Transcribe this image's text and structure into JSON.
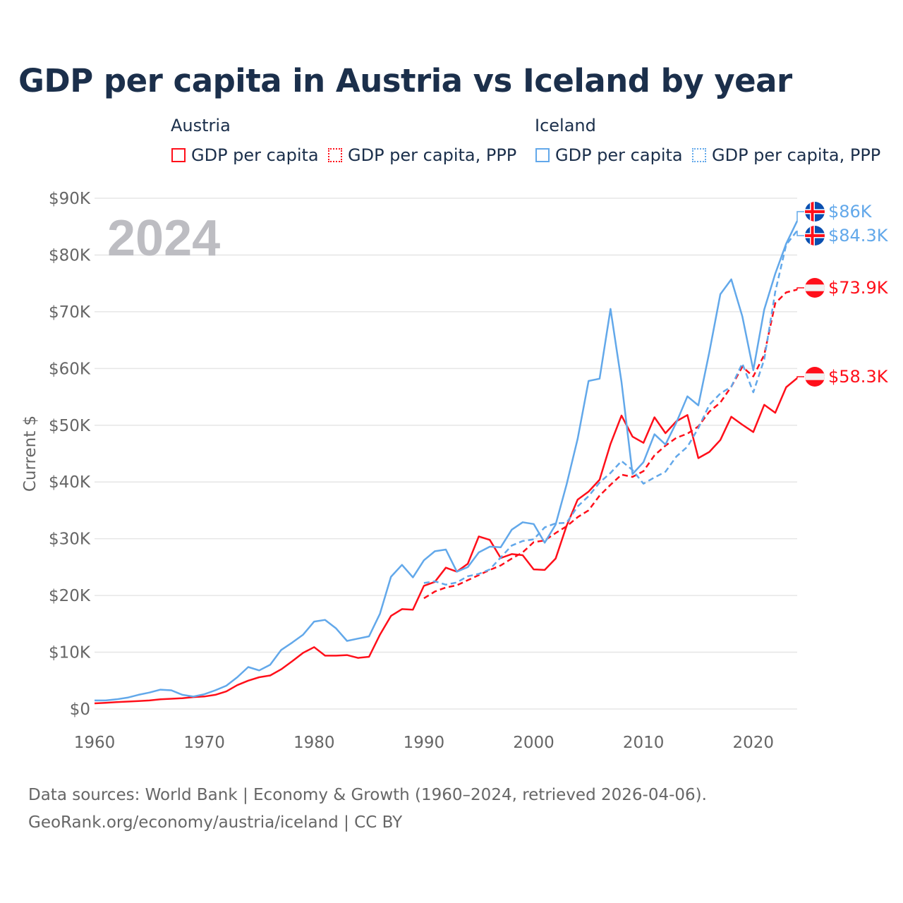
{
  "title": "GDP per capita in Austria vs Iceland by year",
  "legend": {
    "groups": [
      {
        "name": "Austria",
        "items": [
          "GDP per capita",
          "GDP per capita, PPP"
        ]
      },
      {
        "name": "Iceland",
        "items": [
          "GDP per capita",
          "GDP per capita, PPP"
        ]
      }
    ]
  },
  "year_watermark": "2024",
  "footer": {
    "line1": "Data sources: World Bank | Economy & Growth (1960–2024, retrieved 2026-04-06).",
    "line2": "GeoRank.org/economy/austria/iceland | CC BY"
  },
  "colors": {
    "austria": "#ff0f1a",
    "iceland": "#62a8ea",
    "title": "#1b2f4b"
  },
  "chart_data": {
    "type": "line",
    "title": "GDP per capita in Austria vs Iceland by year",
    "xlabel": "",
    "ylabel": "Current $",
    "xlim": [
      1960,
      2024
    ],
    "ylim": [
      0,
      90000
    ],
    "x_ticks": [
      "1960",
      "1970",
      "1980",
      "1990",
      "2000",
      "2010",
      "2020"
    ],
    "y_ticks": [
      "$0",
      "$10K",
      "$20K",
      "$30K",
      "$40K",
      "$50K",
      "$60K",
      "$70K",
      "$80K",
      "$90K"
    ],
    "grid": true,
    "legend_position": "top",
    "series": [
      {
        "name": "Austria GDP per capita",
        "country": "austria",
        "dashed": false,
        "start_year": 1960,
        "end_label": "$58.3K",
        "values_k": [
          1.0,
          1.1,
          1.2,
          1.3,
          1.4,
          1.5,
          1.7,
          1.8,
          1.9,
          2.1,
          2.2,
          2.5,
          3.1,
          4.2,
          5.0,
          5.6,
          5.9,
          7.0,
          8.4,
          9.9,
          10.9,
          9.4,
          9.4,
          9.5,
          9.0,
          9.2,
          13.1,
          16.4,
          17.6,
          17.5,
          21.7,
          22.4,
          24.9,
          24.2,
          25.6,
          30.4,
          29.8,
          26.6,
          27.3,
          27.1,
          24.6,
          24.5,
          26.5,
          32.3,
          36.9,
          38.3,
          40.4,
          46.7,
          51.7,
          48.0,
          46.9,
          51.4,
          48.6,
          50.7,
          51.8,
          44.2,
          45.3,
          47.4,
          51.5,
          50.1,
          48.8,
          53.6,
          52.2,
          56.7,
          58.3
        ]
      },
      {
        "name": "Austria GDP per capita, PPP",
        "country": "austria",
        "dashed": true,
        "start_year": 1990,
        "end_label": "$73.9K",
        "values_k": [
          19.5,
          20.7,
          21.4,
          21.8,
          22.7,
          23.6,
          24.5,
          25.3,
          26.5,
          27.6,
          29.4,
          29.7,
          31.0,
          32.2,
          33.8,
          35.0,
          37.6,
          39.5,
          41.3,
          40.9,
          41.9,
          44.7,
          46.4,
          47.8,
          48.5,
          49.8,
          52.4,
          54.0,
          56.8,
          60.3,
          58.6,
          62.4,
          71.5,
          73.4,
          73.9
        ]
      },
      {
        "name": "Iceland GDP per capita",
        "country": "iceland",
        "dashed": false,
        "start_year": 1960,
        "end_label": "$86K",
        "values_k": [
          1.5,
          1.5,
          1.7,
          2.0,
          2.5,
          2.9,
          3.4,
          3.3,
          2.5,
          2.2,
          2.6,
          3.3,
          4.1,
          5.6,
          7.4,
          6.8,
          7.8,
          10.4,
          11.7,
          13.1,
          15.4,
          15.7,
          14.2,
          12.0,
          12.4,
          12.8,
          16.8,
          23.3,
          25.4,
          23.2,
          26.2,
          27.8,
          28.1,
          24.2,
          25.0,
          27.6,
          28.6,
          28.5,
          31.6,
          32.9,
          32.6,
          29.3,
          32.5,
          39.6,
          47.6,
          57.8,
          58.2,
          70.5,
          57.6,
          41.4,
          43.5,
          48.4,
          46.6,
          50.5,
          55.1,
          53.5,
          62.9,
          73.1,
          75.7,
          69.2,
          59.7,
          70.4,
          76.7,
          82.0,
          86.0
        ]
      },
      {
        "name": "Iceland GDP per capita, PPP",
        "country": "iceland",
        "dashed": true,
        "start_year": 1990,
        "end_label": "$84.3K",
        "values_k": [
          22.2,
          22.5,
          21.9,
          22.3,
          23.4,
          23.8,
          24.6,
          26.7,
          28.8,
          29.6,
          29.9,
          32.0,
          32.7,
          32.8,
          35.7,
          37.5,
          39.9,
          41.6,
          43.7,
          42.1,
          39.7,
          40.8,
          41.8,
          44.5,
          46.2,
          49.5,
          53.6,
          55.6,
          56.8,
          60.9,
          55.8,
          61.6,
          73.5,
          81.8,
          84.3
        ]
      }
    ]
  }
}
